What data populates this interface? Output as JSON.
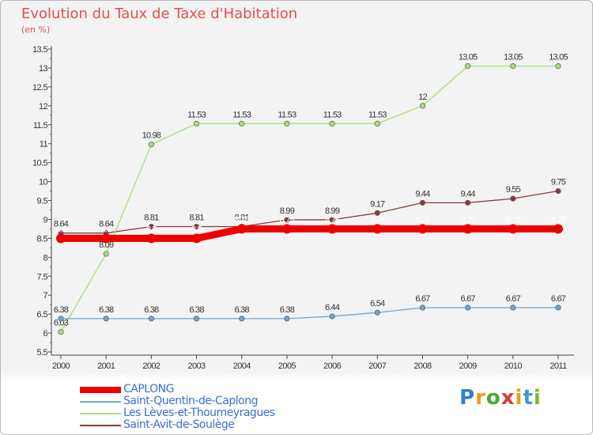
{
  "chart_data": {
    "type": "line",
    "title": "Evolution du Taux de Taxe d'Habitation",
    "subtitle": "(en %)",
    "x": [
      "2000",
      "2001",
      "2002",
      "2003",
      "2004",
      "2005",
      "2006",
      "2007",
      "2008",
      "2009",
      "2010",
      "2011"
    ],
    "ylim": [
      5.5,
      13.5
    ],
    "yticks": [
      "5.5",
      "6",
      "6.5",
      "7",
      "7.5",
      "8",
      "8.5",
      "9",
      "9.5",
      "10",
      "10.5",
      "11",
      "11.5",
      "12",
      "12.5",
      "13",
      "13.5"
    ],
    "grid": "none",
    "legend_position": "bottom-left",
    "series": [
      {
        "name": "CAPLONG",
        "color": "#ee0000",
        "values": [
          8.5,
          8.5,
          8.5,
          8.5,
          8.75,
          8.75,
          8.75,
          8.75,
          8.75,
          8.75,
          8.75,
          8.75
        ],
        "labels": [
          "8.5",
          "8.5",
          "8.5",
          "8.5",
          "8.75",
          "8.75",
          "8.75",
          "8.75",
          "8.75",
          "8.75",
          "8.75",
          "8.75"
        ]
      },
      {
        "name": "Saint-Quentin-de-Caplong",
        "color": "#6fa5d2",
        "values": [
          6.38,
          6.38,
          6.38,
          6.38,
          6.38,
          6.38,
          6.44,
          6.54,
          6.67,
          6.67,
          6.67,
          6.67
        ],
        "labels": [
          "6.38",
          "6.38",
          "6.38",
          "6.38",
          "6.38",
          "6.38",
          "6.44",
          "6.54",
          "6.67",
          "6.67",
          "6.67",
          "6.67"
        ]
      },
      {
        "name": "Les Lèves-et-Thoumeyragues",
        "color": "#a6e07c",
        "values": [
          6.03,
          8.09,
          10.98,
          11.53,
          11.53,
          11.53,
          11.53,
          11.53,
          12,
          13.05,
          13.05,
          13.05
        ],
        "labels": [
          "6.03",
          "8.09",
          "10.98",
          "11.53",
          "11.53",
          "11.53",
          "11.53",
          "11.53",
          "12",
          "13.05",
          "13.05",
          "13.05"
        ]
      },
      {
        "name": "Saint-Avit-de-Soulège",
        "color": "#8a3a3a",
        "values": [
          8.64,
          8.64,
          8.81,
          8.81,
          8.81,
          8.99,
          8.99,
          9.17,
          9.44,
          9.44,
          9.55,
          9.75
        ],
        "labels": [
          "8.64",
          "8.64",
          "8.81",
          "8.81",
          "8.81",
          "8.99",
          "8.99",
          "9.17",
          "9.44",
          "9.44",
          "9.55",
          "9.75"
        ]
      }
    ]
  },
  "brand": {
    "letters": [
      "P",
      "r",
      "o",
      "x",
      "i",
      "t",
      "i"
    ],
    "colors": [
      "#2f7fd6",
      "#f29a1a",
      "#4aa82e",
      "#d63a3a",
      "#e0a21a",
      "#3a9ad6",
      "#7ab82e"
    ]
  }
}
